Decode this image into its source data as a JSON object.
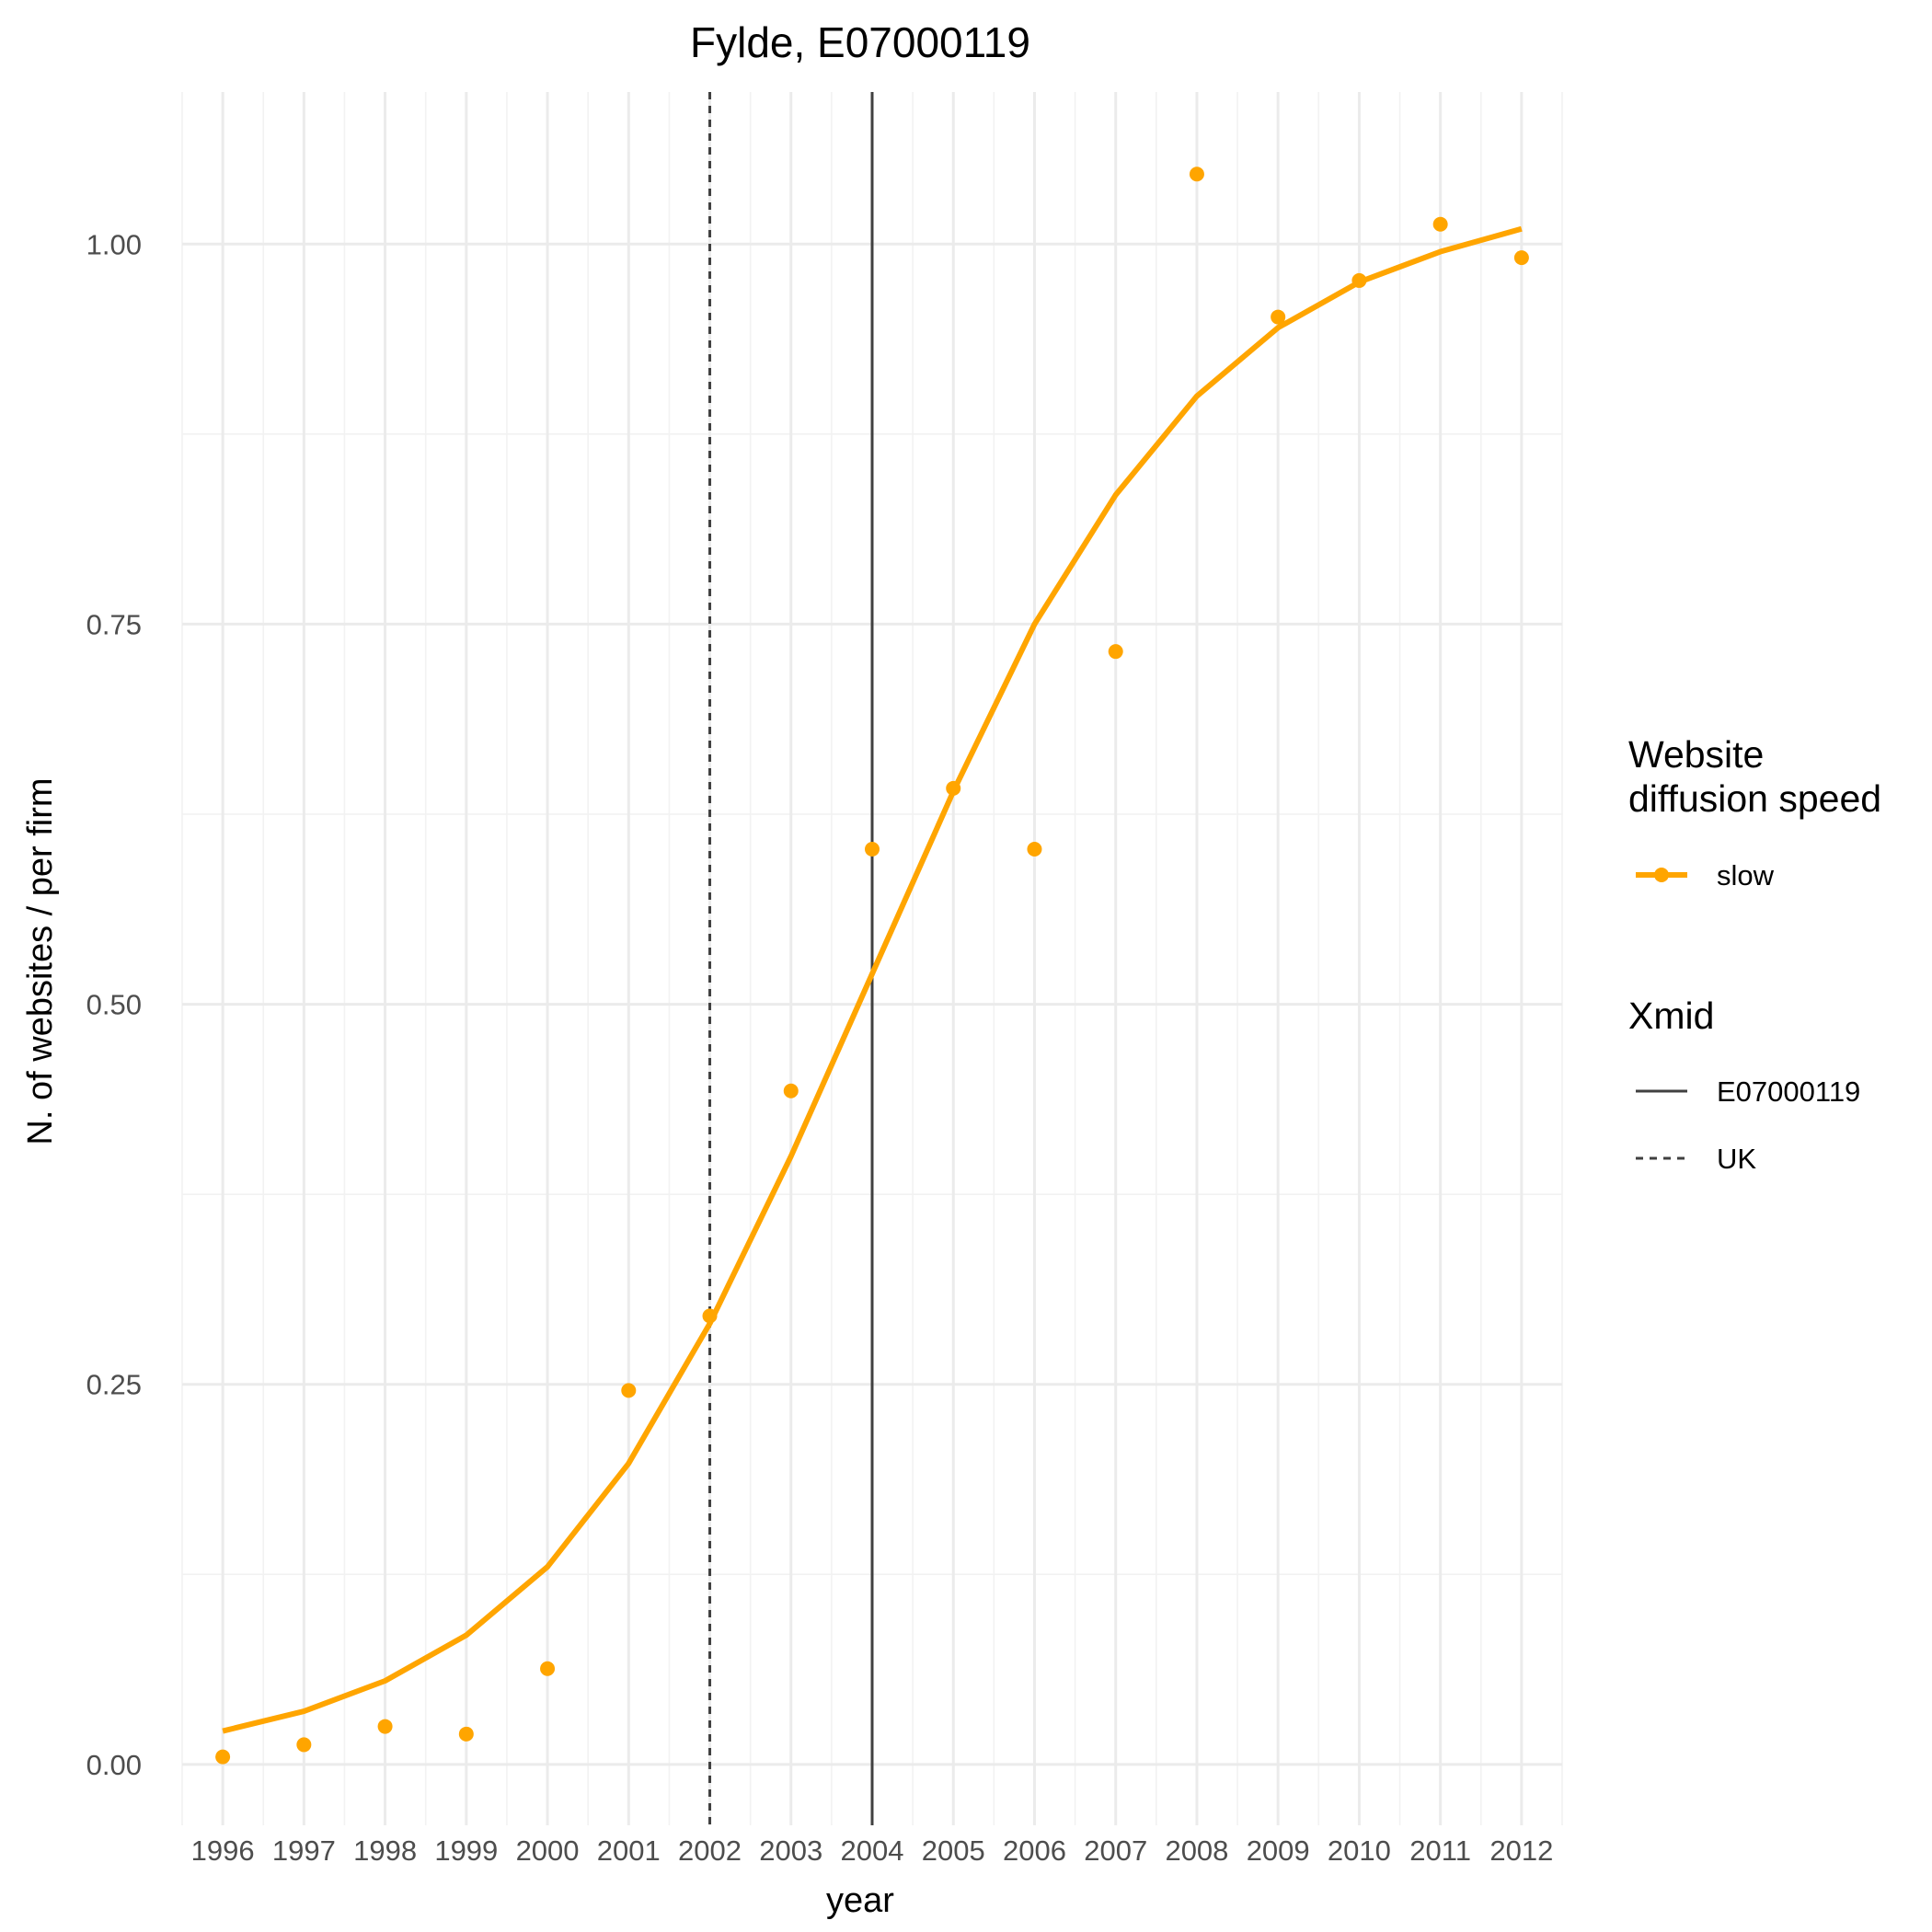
{
  "chart_data": {
    "type": "line",
    "title": "Fylde, E07000119",
    "xlabel": "year",
    "ylabel": "N. of websites / per firm",
    "x": [
      1996,
      1997,
      1998,
      1999,
      2000,
      2001,
      2002,
      2003,
      2004,
      2005,
      2006,
      2007,
      2008,
      2009,
      2010,
      2011,
      2012
    ],
    "x_tick_labels": [
      "1996",
      "1997",
      "1998",
      "1999",
      "2000",
      "2001",
      "2002",
      "2003",
      "2004",
      "2005",
      "2006",
      "2007",
      "2008",
      "2009",
      "2010",
      "2011",
      "2012"
    ],
    "xlim": [
      1995.5,
      2012.5
    ],
    "ylim": [
      -0.04,
      1.1
    ],
    "y_ticks": [
      0,
      0.25,
      0.5,
      0.75,
      1.0
    ],
    "y_tick_labels": [
      "0.00",
      "0.25",
      "0.50",
      "0.75",
      "1.00"
    ],
    "grid": true,
    "series": [
      {
        "name": "slow",
        "color": "#FFA500",
        "points": [
          0.005,
          0.013,
          0.025,
          0.02,
          0.063,
          0.246,
          0.295,
          0.443,
          0.602,
          0.642,
          0.602,
          0.732,
          1.046,
          0.952,
          0.976,
          1.013,
          0.991
        ],
        "fitted": [
          0.022,
          0.035,
          0.055,
          0.085,
          0.13,
          0.198,
          0.29,
          0.4,
          0.52,
          0.64,
          0.75,
          0.835,
          0.9,
          0.945,
          0.975,
          0.995,
          1.01
        ]
      }
    ],
    "vlines": [
      {
        "name": "E07000119",
        "x": 2004,
        "style": "solid",
        "color": "#404040"
      },
      {
        "name": "UK",
        "x": 2002,
        "style": "dashed",
        "color": "#404040"
      }
    ],
    "legend": {
      "position": "right",
      "groups": [
        {
          "title_lines": [
            "Website",
            "diffusion speed"
          ],
          "items": [
            {
              "label": "slow",
              "type": "line-point",
              "color": "#FFA500"
            }
          ]
        },
        {
          "title_lines": [
            "Xmid"
          ],
          "items": [
            {
              "label": "E07000119",
              "type": "solid"
            },
            {
              "label": "UK",
              "type": "dashed"
            }
          ]
        }
      ]
    }
  }
}
